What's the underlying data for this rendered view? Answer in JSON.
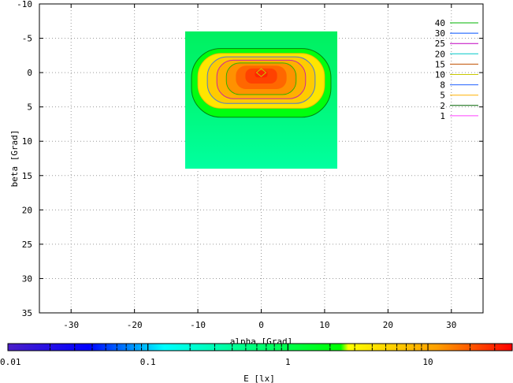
{
  "chart_data": {
    "type": "heatmap",
    "title": "",
    "xlabel": "alpha [Grad]",
    "ylabel": "beta [Grad]",
    "xlim": [
      -35,
      35
    ],
    "ylim": [
      -10,
      35
    ],
    "y_reversed": true,
    "x_ticks": [
      -30,
      -20,
      -10,
      0,
      10,
      20,
      30
    ],
    "y_ticks": [
      -10,
      -5,
      0,
      5,
      10,
      15,
      20,
      25,
      30,
      35
    ],
    "grid": true,
    "data_extent": {
      "alpha": [
        -12,
        12
      ],
      "beta": [
        -6,
        14
      ]
    },
    "peak": {
      "alpha": 0,
      "beta": 0
    },
    "approx_levels": [
      {
        "alpha_half_width": 12,
        "beta_range": [
          -6,
          14
        ],
        "E": 1
      },
      {
        "alpha_half_width": 11,
        "beta_range": [
          -3.5,
          6.5
        ],
        "E": 2
      },
      {
        "alpha_half_width": 10,
        "beta_range": [
          -2.8,
          5.2
        ],
        "E": 4
      },
      {
        "alpha_half_width": 8.5,
        "beta_range": [
          -2.3,
          4.5
        ],
        "E": 6
      },
      {
        "alpha_half_width": 7,
        "beta_range": [
          -1.8,
          3.8
        ],
        "E": 9
      },
      {
        "alpha_half_width": 5.5,
        "beta_range": [
          -1.4,
          3.2
        ],
        "E": 13
      },
      {
        "alpha_half_width": 4,
        "beta_range": [
          -1.0,
          2.4
        ],
        "E": 18
      },
      {
        "alpha_half_width": 2.5,
        "beta_range": [
          -0.6,
          1.6
        ],
        "E": 24
      },
      {
        "alpha_half_width": 1.0,
        "beta_range": [
          -0.3,
          0.7
        ],
        "E": 30
      }
    ],
    "contour_levels": [
      {
        "label": "40",
        "color": "#00b400"
      },
      {
        "label": "30",
        "color": "#0050ff"
      },
      {
        "label": "25",
        "color": "#c000c0"
      },
      {
        "label": "20",
        "color": "#00c8c8"
      },
      {
        "label": "15",
        "color": "#c05000"
      },
      {
        "label": "10",
        "color": "#c8c800"
      },
      {
        "label": "8",
        "color": "#2060ff"
      },
      {
        "label": "5",
        "color": "#ffb000"
      },
      {
        "label": "2",
        "color": "#006400"
      },
      {
        "label": "1",
        "color": "#ff40ff"
      }
    ],
    "colorbar": {
      "label": "E [lx]",
      "scale": "log",
      "range": [
        0.01,
        40
      ],
      "ticks": [
        {
          "value": 0.01,
          "label": "0.01"
        },
        {
          "value": 0.1,
          "label": "0.1"
        },
        {
          "value": 1,
          "label": "1"
        },
        {
          "value": 10,
          "label": "10"
        }
      ]
    }
  }
}
